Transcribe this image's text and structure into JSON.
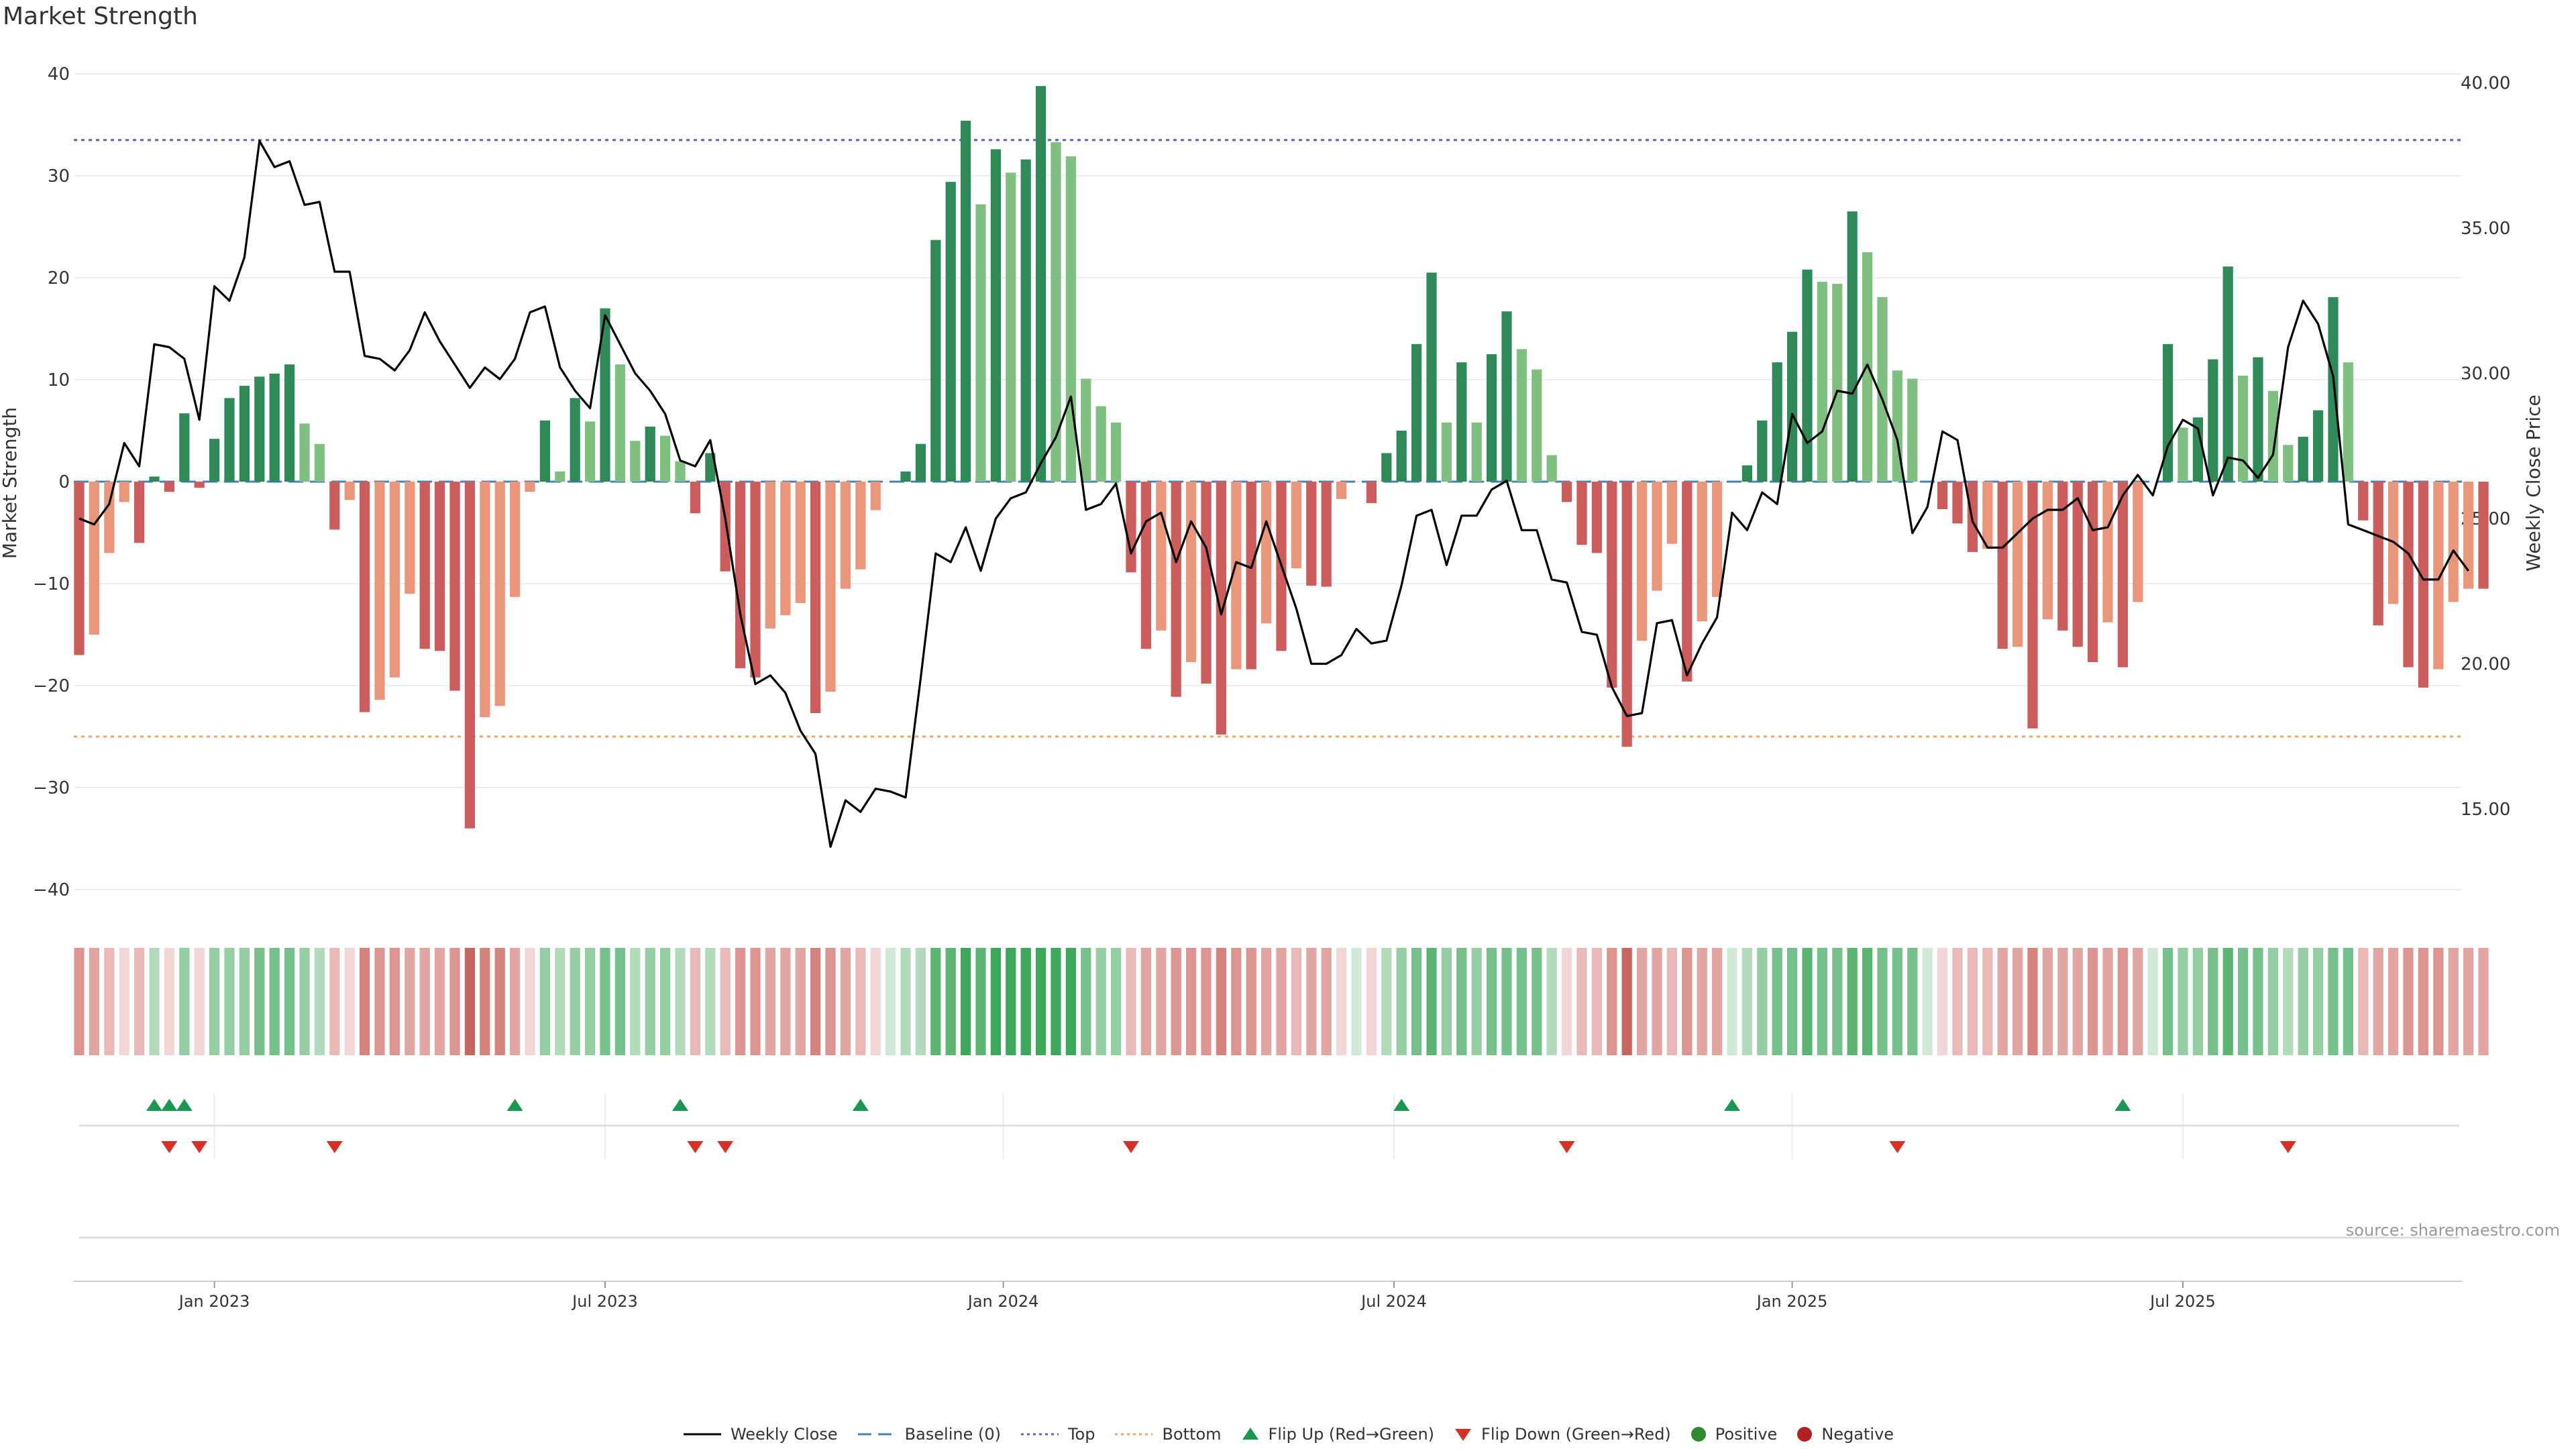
{
  "chart_data": {
    "type": "bar",
    "title": "Market Strength",
    "ylabel_left": "Market Strength",
    "ylabel_right": "Weekly Close Price",
    "source": "source: sharemaestro.com",
    "left_ylim": [
      -42,
      42
    ],
    "right_ylim": [
      12,
      40.5
    ],
    "left_ticks": [
      "40",
      "30",
      "20",
      "10",
      "0",
      "−10",
      "−20",
      "−30",
      "−40"
    ],
    "right_ticks": [
      "40.00",
      "35.00",
      "30.00",
      "25.00",
      "20.00",
      "15.00"
    ],
    "x_ticks": [
      {
        "label": "Jan 2023",
        "week": 9
      },
      {
        "label": "Jul 2023",
        "week": 35
      },
      {
        "label": "Jan 2024",
        "week": 61.5
      },
      {
        "label": "Jul 2024",
        "week": 87.5
      },
      {
        "label": "Jan 2025",
        "week": 114
      },
      {
        "label": "Jul 2025",
        "week": 140
      }
    ],
    "top_threshold": 33.5,
    "bottom_threshold": -25,
    "strength": [
      -17,
      -15,
      -7,
      -2,
      -6,
      0.5,
      -1,
      6.7,
      -0.6,
      4.2,
      8.2,
      9.4,
      10.3,
      10.6,
      11.5,
      5.7,
      3.7,
      -4.7,
      -1.8,
      -22.6,
      -21.4,
      -19.2,
      -11,
      -16.4,
      -16.6,
      -20.5,
      -34,
      -23.1,
      -22,
      -11.3,
      -1,
      6,
      1,
      8.2,
      5.9,
      17,
      11.5,
      4,
      5.4,
      4.5,
      2,
      -3.1,
      2.8,
      -8.8,
      -18.3,
      -19.2,
      -14.4,
      -13.1,
      -11.9,
      -22.7,
      -20.6,
      -10.5,
      -8.6,
      -2.8,
      0,
      1,
      3.7,
      23.7,
      29.4,
      35.4,
      27.2,
      32.6,
      30.3,
      31.6,
      38.8,
      33.3,
      31.9,
      10.1,
      7.4,
      5.8,
      -8.9,
      -16.4,
      -14.6,
      -21.1,
      -17.7,
      -19.8,
      -24.8,
      -18.4,
      -18.4,
      -13.9,
      -16.6,
      -8.5,
      -10.2,
      -10.3,
      -1.7,
      0,
      -2.1,
      2.8,
      5,
      13.5,
      20.5,
      5.8,
      11.7,
      5.8,
      12.5,
      16.7,
      13,
      11,
      2.6,
      -2,
      -6.2,
      -7,
      -20.2,
      -26,
      -15.6,
      -10.7,
      -6.1,
      -19.6,
      -13.7,
      -11.3,
      0,
      1.6,
      6,
      11.7,
      14.7,
      20.8,
      19.6,
      19.4,
      26.5,
      22.5,
      18.1,
      10.9,
      10.1,
      0,
      -2.7,
      -4.1,
      -6.9,
      -6.6,
      -16.4,
      -16.2,
      -24.2,
      -13.5,
      -14.6,
      -16.2,
      -17.7,
      -13.8,
      -18.2,
      -11.8,
      0,
      13.5,
      5.3,
      6.3,
      12,
      21.1,
      10.4,
      12.2,
      8.9,
      3.6,
      4.4,
      7,
      18.1,
      11.7,
      -3.8,
      -14.1,
      -12,
      -18.2,
      -20.2,
      -18.4,
      -11.8,
      -10.5,
      -10.5
    ],
    "weekly_close": [
      25,
      24.8,
      25.5,
      27.6,
      26.8,
      31,
      30.9,
      30.5,
      28.4,
      33,
      32.5,
      34,
      38,
      37.1,
      37.3,
      35.8,
      35.9,
      33.5,
      33.5,
      30.6,
      30.5,
      30.1,
      30.8,
      32.1,
      31.1,
      30.3,
      29.5,
      30.2,
      29.8,
      30.5,
      32.1,
      32.3,
      30.2,
      29.4,
      28.8,
      32,
      31,
      30,
      29.4,
      28.6,
      27,
      26.8,
      27.7,
      25,
      21.7,
      19.3,
      19.6,
      19,
      17.7,
      16.9,
      13.7,
      15.3,
      14.9,
      15.7,
      15.6,
      15.4,
      19.5,
      23.8,
      23.5,
      24.7,
      23.2,
      25,
      25.7,
      25.9,
      26.9,
      27.8,
      29.2,
      25.3,
      25.5,
      26.2,
      23.8,
      24.9,
      25.2,
      23.5,
      24.9,
      24,
      21.7,
      23.5,
      23.3,
      24.9,
      23.4,
      21.9,
      20,
      20,
      20.3,
      21.2,
      20.7,
      20.8,
      22.7,
      25.1,
      25.3,
      23.4,
      25.1,
      25.1,
      26,
      26.3,
      24.6,
      24.6,
      22.9,
      22.8,
      21.1,
      21,
      19.2,
      18.2,
      18.3,
      21.4,
      21.5,
      19.6,
      20.7,
      21.6,
      25.2,
      24.6,
      25.9,
      25.5,
      28.6,
      27.6,
      28,
      29.4,
      29.3,
      30.3,
      29.1,
      27.7,
      24.5,
      25.4,
      28,
      27.7,
      24.9,
      24,
      24,
      24.5,
      25,
      25.3,
      25.3,
      25.7,
      24.6,
      24.7,
      25.8,
      26.5,
      25.8,
      27.5,
      28.4,
      28.1,
      25.8,
      27.1,
      27,
      26.4,
      27.2,
      30.9,
      32.5,
      31.7,
      29.9,
      24.8,
      24.6,
      24.4,
      24.2,
      23.8,
      22.9,
      22.9,
      23.9,
      23.2
    ],
    "gradient_colors": [
      "#e8b9b7",
      "#e2a6a2",
      "#dc958f",
      "#d5837c",
      "#c76660",
      "#f0d6d4",
      "#cfe9d6",
      "#b2dbbc",
      "#94cea3",
      "#76c18b",
      "#5bb573",
      "#3da85b"
    ],
    "flips_up": [
      5,
      6,
      7,
      29,
      40,
      52,
      88,
      110,
      136
    ],
    "flips_down": [
      6,
      8,
      17,
      41,
      43,
      70,
      99,
      121,
      147
    ],
    "legend": [
      "Weekly Close",
      "Baseline (0)",
      "Top",
      "Bottom",
      "Flip Up (Red→Green)",
      "Flip Down (Green→Red)",
      "Positive",
      "Negative"
    ],
    "colors": {
      "strong_positive": "#2e8b57",
      "weak_positive": "#7fbf7f",
      "strong_negative": "#cd5c5c",
      "weak_negative": "#e9967a",
      "price_line": "#000000",
      "baseline": "#4682b4",
      "top_line": "#6a5acd",
      "bottom_line": "#f4a460",
      "flip_up": "#1a9850",
      "flip_down": "#d73027",
      "positive_dot": "#2e8b2e",
      "negative_dot": "#b22222"
    }
  }
}
